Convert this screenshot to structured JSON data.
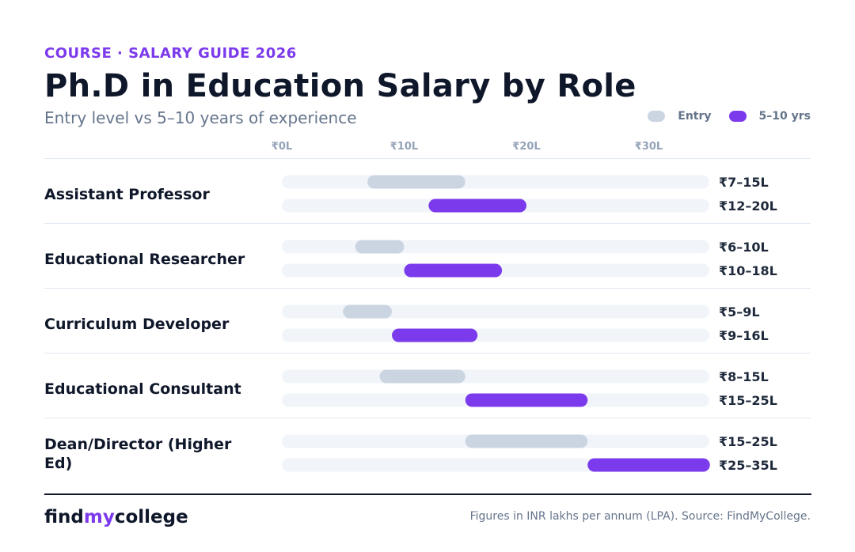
{
  "header": {
    "eyebrow": "COURSE · SALARY GUIDE 2026",
    "title": "Ph.D in Education Salary by Role",
    "subtitle": "Entry level vs 5–10 years of experience"
  },
  "legend": {
    "entry_label": "Entry",
    "experienced_label": "5–10 yrs"
  },
  "colors": {
    "entry": "#cbd5e1",
    "experienced": "#7c3aed",
    "track": "#f1f5f9"
  },
  "chart_data": {
    "type": "bar",
    "orientation": "horizontal-range",
    "unit": "INR lakhs per annum",
    "xlim": [
      0,
      35
    ],
    "x_ticks": [
      {
        "value": 0,
        "label": "₹0L"
      },
      {
        "value": 10,
        "label": "₹10L"
      },
      {
        "value": 20,
        "label": "₹20L"
      },
      {
        "value": 30,
        "label": "₹30L"
      }
    ],
    "legend_position": "top-right",
    "grid": false,
    "categories": [
      "Assistant Professor",
      "Educational Researcher",
      "Curriculum Developer",
      "Educational Consultant",
      "Dean/Director (Higher Ed)"
    ],
    "series": [
      {
        "name": "Entry",
        "ranges": [
          [
            7,
            15
          ],
          [
            6,
            10
          ],
          [
            5,
            9
          ],
          [
            8,
            15
          ],
          [
            15,
            25
          ]
        ],
        "labels": [
          "₹7–15L",
          "₹6–10L",
          "₹5–9L",
          "₹8–15L",
          "₹15–25L"
        ]
      },
      {
        "name": "5–10 yrs",
        "ranges": [
          [
            12,
            20
          ],
          [
            10,
            18
          ],
          [
            9,
            16
          ],
          [
            15,
            25
          ],
          [
            25,
            35
          ]
        ],
        "labels": [
          "₹12–20L",
          "₹10–18L",
          "₹9–16L",
          "₹15–25L",
          "₹25–35L"
        ]
      }
    ]
  },
  "footer": {
    "brand_pre": "find",
    "brand_accent": "my",
    "brand_post": "college",
    "source": "Figures in INR lakhs per annum (LPA). Source: FindMyCollege."
  }
}
